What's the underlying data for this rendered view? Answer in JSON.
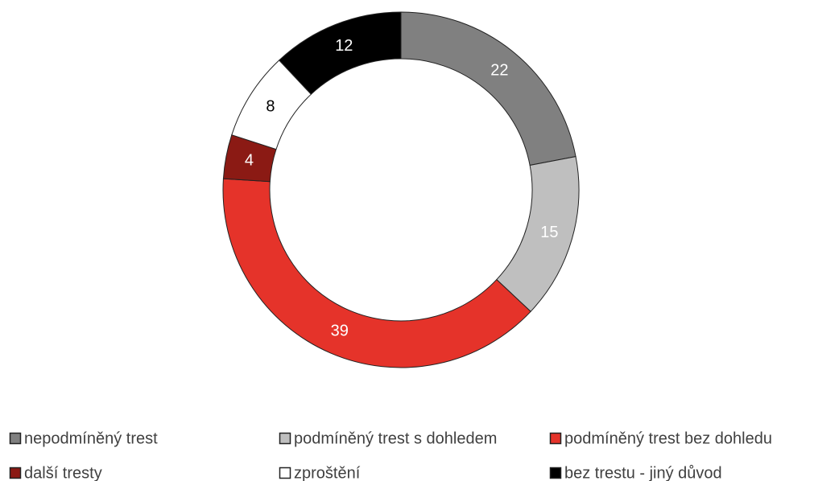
{
  "chart_data": {
    "type": "donut",
    "categories": [
      "nepodmíněný trest",
      "podmíněný trest s dohledem",
      "podmíněný trest bez dohledu",
      "další tresty",
      "zproštění",
      "bez trestu - jiný důvod"
    ],
    "values": [
      22,
      15,
      39,
      4,
      8,
      12
    ],
    "colors": [
      "#808080",
      "#bfbfbf",
      "#e5332a",
      "#8b1a14",
      "#ffffff",
      "#000000"
    ],
    "legend": "bottom"
  }
}
